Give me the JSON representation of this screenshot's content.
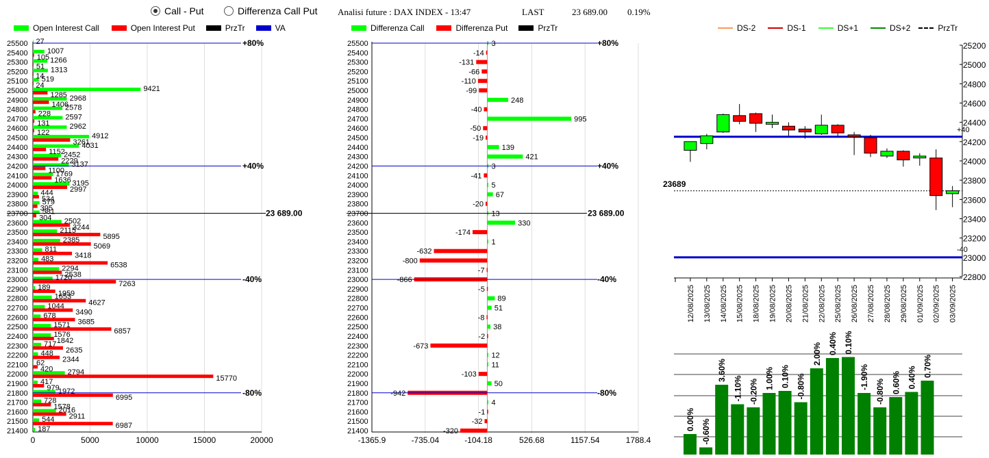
{
  "header": {
    "radio_call_put": "Call - Put",
    "radio_diff": "Differenza Call Put",
    "title": "Analisi future : DAX INDEX - 13:47",
    "last_label": "LAST",
    "last_value": "23 689.00",
    "last_change": "0.19%"
  },
  "legend1": [
    "Open Interest Call",
    "Open Interest Put",
    "PrzTr",
    "VA"
  ],
  "legend2": [
    "Differenza Call",
    "Differenza Put",
    "PrzTr"
  ],
  "legend3": [
    "DS-2",
    "DS-1",
    "DS+1",
    "DS+2",
    "PrzTr"
  ],
  "colors": {
    "call": "#00ff00",
    "put": "#ff0000",
    "va": "#0000cc",
    "green": "#008000",
    "ds2": "#ff9955",
    "ds1": "#cc0000",
    "dsp1": "#33ff33",
    "dsp2": "#008800"
  },
  "chart_data": [
    {
      "type": "bar",
      "title": "Open Interest",
      "strikes": [
        25500,
        25400,
        25300,
        25200,
        25100,
        25000,
        24900,
        24800,
        24700,
        24600,
        24500,
        24400,
        24300,
        24200,
        24100,
        24000,
        23900,
        23800,
        23700,
        23600,
        23500,
        23400,
        23300,
        23200,
        23100,
        23000,
        22900,
        22800,
        22700,
        22600,
        22500,
        22400,
        22300,
        22200,
        22100,
        22000,
        21900,
        21800,
        21700,
        21600,
        21500,
        21400
      ],
      "call": [
        27,
        1007,
        1266,
        1313,
        519,
        9421,
        2968,
        2578,
        2597,
        2962,
        4912,
        4031,
        2452,
        3137,
        1769,
        3195,
        444,
        579,
        581,
        2502,
        2115,
        2385,
        811,
        483,
        2294,
        1720,
        189,
        1653,
        1044,
        678,
        1571,
        1576,
        717,
        448,
        62,
        2794,
        417,
        1972,
        728,
        2016,
        544,
        187
      ],
      "put": [
        105,
        51,
        14,
        24,
        1285,
        1406,
        228,
        131,
        122,
        3261,
        1152,
        2229,
        1100,
        1636,
        2997,
        534,
        395,
        304,
        3244,
        5895,
        5069,
        3418,
        6538,
        2538,
        7263,
        1959,
        4627,
        3490,
        3685,
        6857,
        1842,
        2635,
        2344,
        420,
        15770,
        979,
        6995,
        1578,
        2911,
        6987
      ],
      "put_strikes": [
        25400,
        25300,
        25200,
        25100,
        25000,
        24900,
        24800,
        24700,
        24600,
        24500,
        24400,
        24300,
        24200,
        24100,
        24000,
        23900,
        23800,
        23700,
        23600,
        23500,
        23400,
        23300,
        23200,
        23100,
        23000,
        22900,
        22800,
        22700,
        22600,
        22500,
        22400,
        22300,
        22200,
        22100,
        22000,
        21900,
        21800,
        21700,
        21600,
        21500
      ],
      "xticks": [
        0,
        5000,
        10000,
        15000,
        20000
      ],
      "xlim": [
        0,
        20000
      ],
      "levels": [
        {
          "strike": 25500,
          "label": "+80%"
        },
        {
          "strike": 24200,
          "label": "+40%"
        },
        {
          "strike": 23000,
          "label": "-40%"
        },
        {
          "strike": 21800,
          "label": "-80%"
        }
      ],
      "prztr": {
        "strike": 23700,
        "label": "23 689.00"
      }
    },
    {
      "type": "bar",
      "title": "Differenza Call Put",
      "values": [
        3,
        -14,
        -131,
        -66,
        -110,
        -99,
        248,
        -40,
        995,
        -50,
        -19,
        139,
        421,
        3,
        -41,
        5,
        67,
        -20,
        13,
        330,
        -174,
        1,
        -632,
        -800,
        -7,
        -866,
        -5,
        89,
        51,
        -8,
        38,
        -2,
        -673,
        12,
        11,
        -103,
        50,
        -942,
        4,
        -1,
        -32,
        -320
      ],
      "value_labels": [
        "3",
        "-14",
        "-131",
        "-66",
        "-110",
        "-99",
        "248",
        "-40",
        "995",
        "-50",
        "-19",
        "139",
        "421",
        "3",
        "-41",
        "5",
        "67",
        "-20",
        "13",
        "330",
        "-174",
        "1",
        "-632",
        "-800",
        "-7",
        "-866",
        "-5",
        "89",
        "51",
        "-8",
        "38",
        "-2",
        "-673",
        "12",
        "11",
        "-103",
        "50",
        "-942",
        "4",
        "-1",
        "-32",
        "-320"
      ],
      "xticks": [
        "-1365.9",
        "-735.04",
        "-104.18",
        "526.68",
        "1157.54",
        "1788.4"
      ],
      "xlim": [
        -1365.9,
        1788.4
      ],
      "levels": [
        "+80%",
        "+40%",
        "-40%",
        "-80%"
      ],
      "prztr_label": "23 689.00"
    },
    {
      "type": "candlestick",
      "dates": [
        "12/08/2025",
        "13/08/2025",
        "14/08/2025",
        "15/08/2025",
        "18/08/2025",
        "19/08/2025",
        "20/08/2025",
        "21/08/2025",
        "22/08/2025",
        "25/08/2025",
        "26/08/2025",
        "27/08/2025",
        "28/08/2025",
        "29/08/2025",
        "01/09/2025",
        "02/09/2025",
        "03/09/2025"
      ],
      "ohlc": [
        [
          24110,
          24200,
          23990,
          24200
        ],
        [
          24180,
          24280,
          24120,
          24260
        ],
        [
          24300,
          24490,
          24290,
          24480
        ],
        [
          24470,
          24590,
          24380,
          24410
        ],
        [
          24490,
          24500,
          24300,
          24390
        ],
        [
          24380,
          24480,
          24340,
          24400
        ],
        [
          24360,
          24400,
          24260,
          24320
        ],
        [
          24330,
          24360,
          24230,
          24300
        ],
        [
          24280,
          24480,
          24270,
          24370
        ],
        [
          24370,
          24380,
          24250,
          24290
        ],
        [
          24270,
          24300,
          24060,
          24250
        ],
        [
          24240,
          24270,
          24040,
          24080
        ],
        [
          24050,
          24130,
          24030,
          24100
        ],
        [
          24100,
          24110,
          23940,
          24010
        ],
        [
          24030,
          24080,
          23950,
          24050
        ],
        [
          24030,
          24120,
          23490,
          23640
        ],
        [
          23660,
          23740,
          23520,
          23690
        ]
      ],
      "yticks": [
        25200,
        25000,
        24800,
        24600,
        24400,
        24200,
        24000,
        23800,
        23600,
        23400,
        23200,
        23000,
        22800
      ],
      "ylim": [
        22800,
        25200
      ],
      "upper_band": {
        "value": 24250,
        "label": "+40"
      },
      "lower_band": {
        "value": 23000,
        "label": "-40"
      },
      "prztr": {
        "value": 23689,
        "label": "23689"
      }
    },
    {
      "type": "bar",
      "title": "Daily change",
      "labels": [
        "0.00%",
        "-0.60%",
        "3.60%",
        "-1.10%",
        "-0.20%",
        "1.00%",
        "0.10%",
        "-0.80%",
        "2.00%",
        "0.40%",
        "0.10%",
        "-1.90%",
        "-0.80%",
        "0.60%",
        "0.40%",
        "0.70%"
      ],
      "heights": [
        1,
        0.35,
        3.4,
        2.45,
        2.3,
        3.0,
        3.1,
        2.55,
        4.2,
        4.7,
        4.75,
        3.0,
        2.3,
        2.8,
        3.05,
        3.6
      ]
    }
  ]
}
